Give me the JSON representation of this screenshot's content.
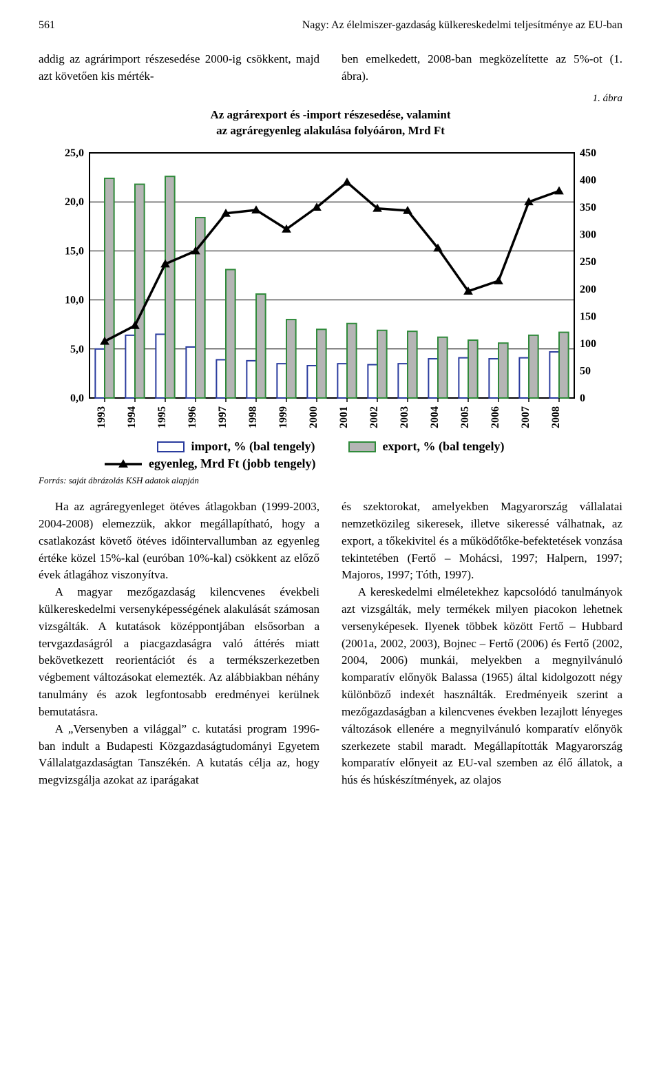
{
  "page_number": "561",
  "running_head": "Nagy: Az élelmiszer-gazdaság külkereskedelmi teljesítménye az EU-ban",
  "intro_left": "addig az agrárimport részesedése 2000-ig csökkent, majd azt követően kis mérték-",
  "intro_right": "ben emelkedett, 2008-ban megközelítette az 5%-ot (1. ábra).",
  "fig_label": "1. ábra",
  "chart_title_l1": "Az agrárexport és -import részesedése, valamint",
  "chart_title_l2": "az agráregyenleg alakulása folyóáron, Mrd Ft",
  "source": "Forrás: saját ábrázolás KSH adatok alapján",
  "legend": {
    "import": "import, % (bal tengely)",
    "export": "export, % (bal tengely)",
    "balance": "egyenleg, Mrd Ft (jobb tengely)"
  },
  "chart": {
    "type": "bar-line-combo",
    "years": [
      "1993",
      "1994",
      "1995",
      "1996",
      "1997",
      "1998",
      "1999",
      "2000",
      "2001",
      "2002",
      "2003",
      "2004",
      "2005",
      "2006",
      "2007",
      "2008"
    ],
    "import_pct": [
      5.0,
      6.4,
      6.5,
      5.2,
      3.9,
      3.8,
      3.5,
      3.3,
      3.5,
      3.4,
      3.5,
      4.0,
      4.1,
      4.0,
      4.1,
      4.7
    ],
    "export_pct": [
      22.4,
      21.8,
      22.6,
      18.4,
      13.1,
      10.6,
      8.0,
      7.0,
      7.6,
      6.9,
      6.8,
      6.2,
      5.9,
      5.6,
      6.4,
      6.7
    ],
    "balance_mrdft": [
      104,
      133,
      246,
      270,
      339,
      345,
      310,
      350,
      396,
      348,
      344,
      275,
      196,
      215,
      360,
      380
    ],
    "left_axis": {
      "min": 0.0,
      "max": 25.0,
      "step": 5.0
    },
    "right_axis": {
      "min": 0,
      "max": 450,
      "step": 50
    },
    "colors": {
      "import_fill": "#ffffff",
      "import_stroke": "#2a3c9e",
      "export_fill": "#b5b5b5",
      "export_stroke": "#2f8a3a",
      "line": "#000000",
      "grid": "#000000",
      "background": "#ffffff",
      "text": "#000000"
    },
    "stroke_widths": {
      "bar": 2,
      "line": 3.5,
      "marker_edge": 2,
      "axis": 2,
      "grid": 1
    },
    "marker": {
      "shape": "triangle",
      "size": 11
    },
    "font": {
      "axis_label_pt": 16,
      "tick_pt": 16
    }
  },
  "body_left": [
    "Ha az agráregyenleget ötéves átlagokban (1999-2003, 2004-2008) elemezzük, akkor megállapítható, hogy a csatlakozást követő ötéves időintervallumban az egyenleg értéke közel 15%-kal (euróban 10%-kal) csökkent az előző évek átlagához viszonyítva.",
    "A magyar mezőgazdaság kilencvenes évekbeli külkereskedelmi versenyképességének alakulását számosan vizsgálták. A kutatások középpontjában elsősorban a tervgazdaságról a piacgazdaságra való áttérés miatt bekövetkezett reorientációt és a termékszerkezetben végbement változásokat elemezték. Az alábbiakban néhány tanulmány és azok legfontosabb eredményei kerülnek bemutatásra.",
    "A „Versenyben a világgal” c. kutatási program 1996-ban indult a Budapesti Közgazdaságtudományi Egyetem Vállalatgazdaságtan Tanszékén. A kutatás célja az, hogy megvizsgálja azokat az iparágakat"
  ],
  "body_right": [
    "és szektorokat, amelyekben Magyarország vállalatai nemzetközileg sikeresek, illetve sikeressé válhatnak, az export, a tőkekivitel és a működőtőke-befektetések vonzása tekintetében (Fertő – Mohácsi, 1997; Halpern, 1997; Majoros, 1997; Tóth, 1997).",
    "A kereskedelmi elméletekhez kapcsolódó tanulmányok azt vizsgálták, mely termékek milyen piacokon lehetnek versenyképesek. Ilyenek többek között Fertő – Hubbard (2001a, 2002, 2003), Bojnec – Fertő (2006) és Fertő (2002, 2004, 2006) munkái, melyekben a megnyilvánuló komparatív előnyök Balassa (1965) által kidolgozott négy különböző indexét használták. Eredményeik szerint a mezőgazdaságban a kilencvenes években lezajlott lényeges változások ellenére a megnyilvánuló komparatív előnyök szerkezete stabil maradt. Megállapították Magyarország komparatív előnyeit az EU-val szemben az élő állatok, a hús és húskészítmények, az olajos"
  ]
}
